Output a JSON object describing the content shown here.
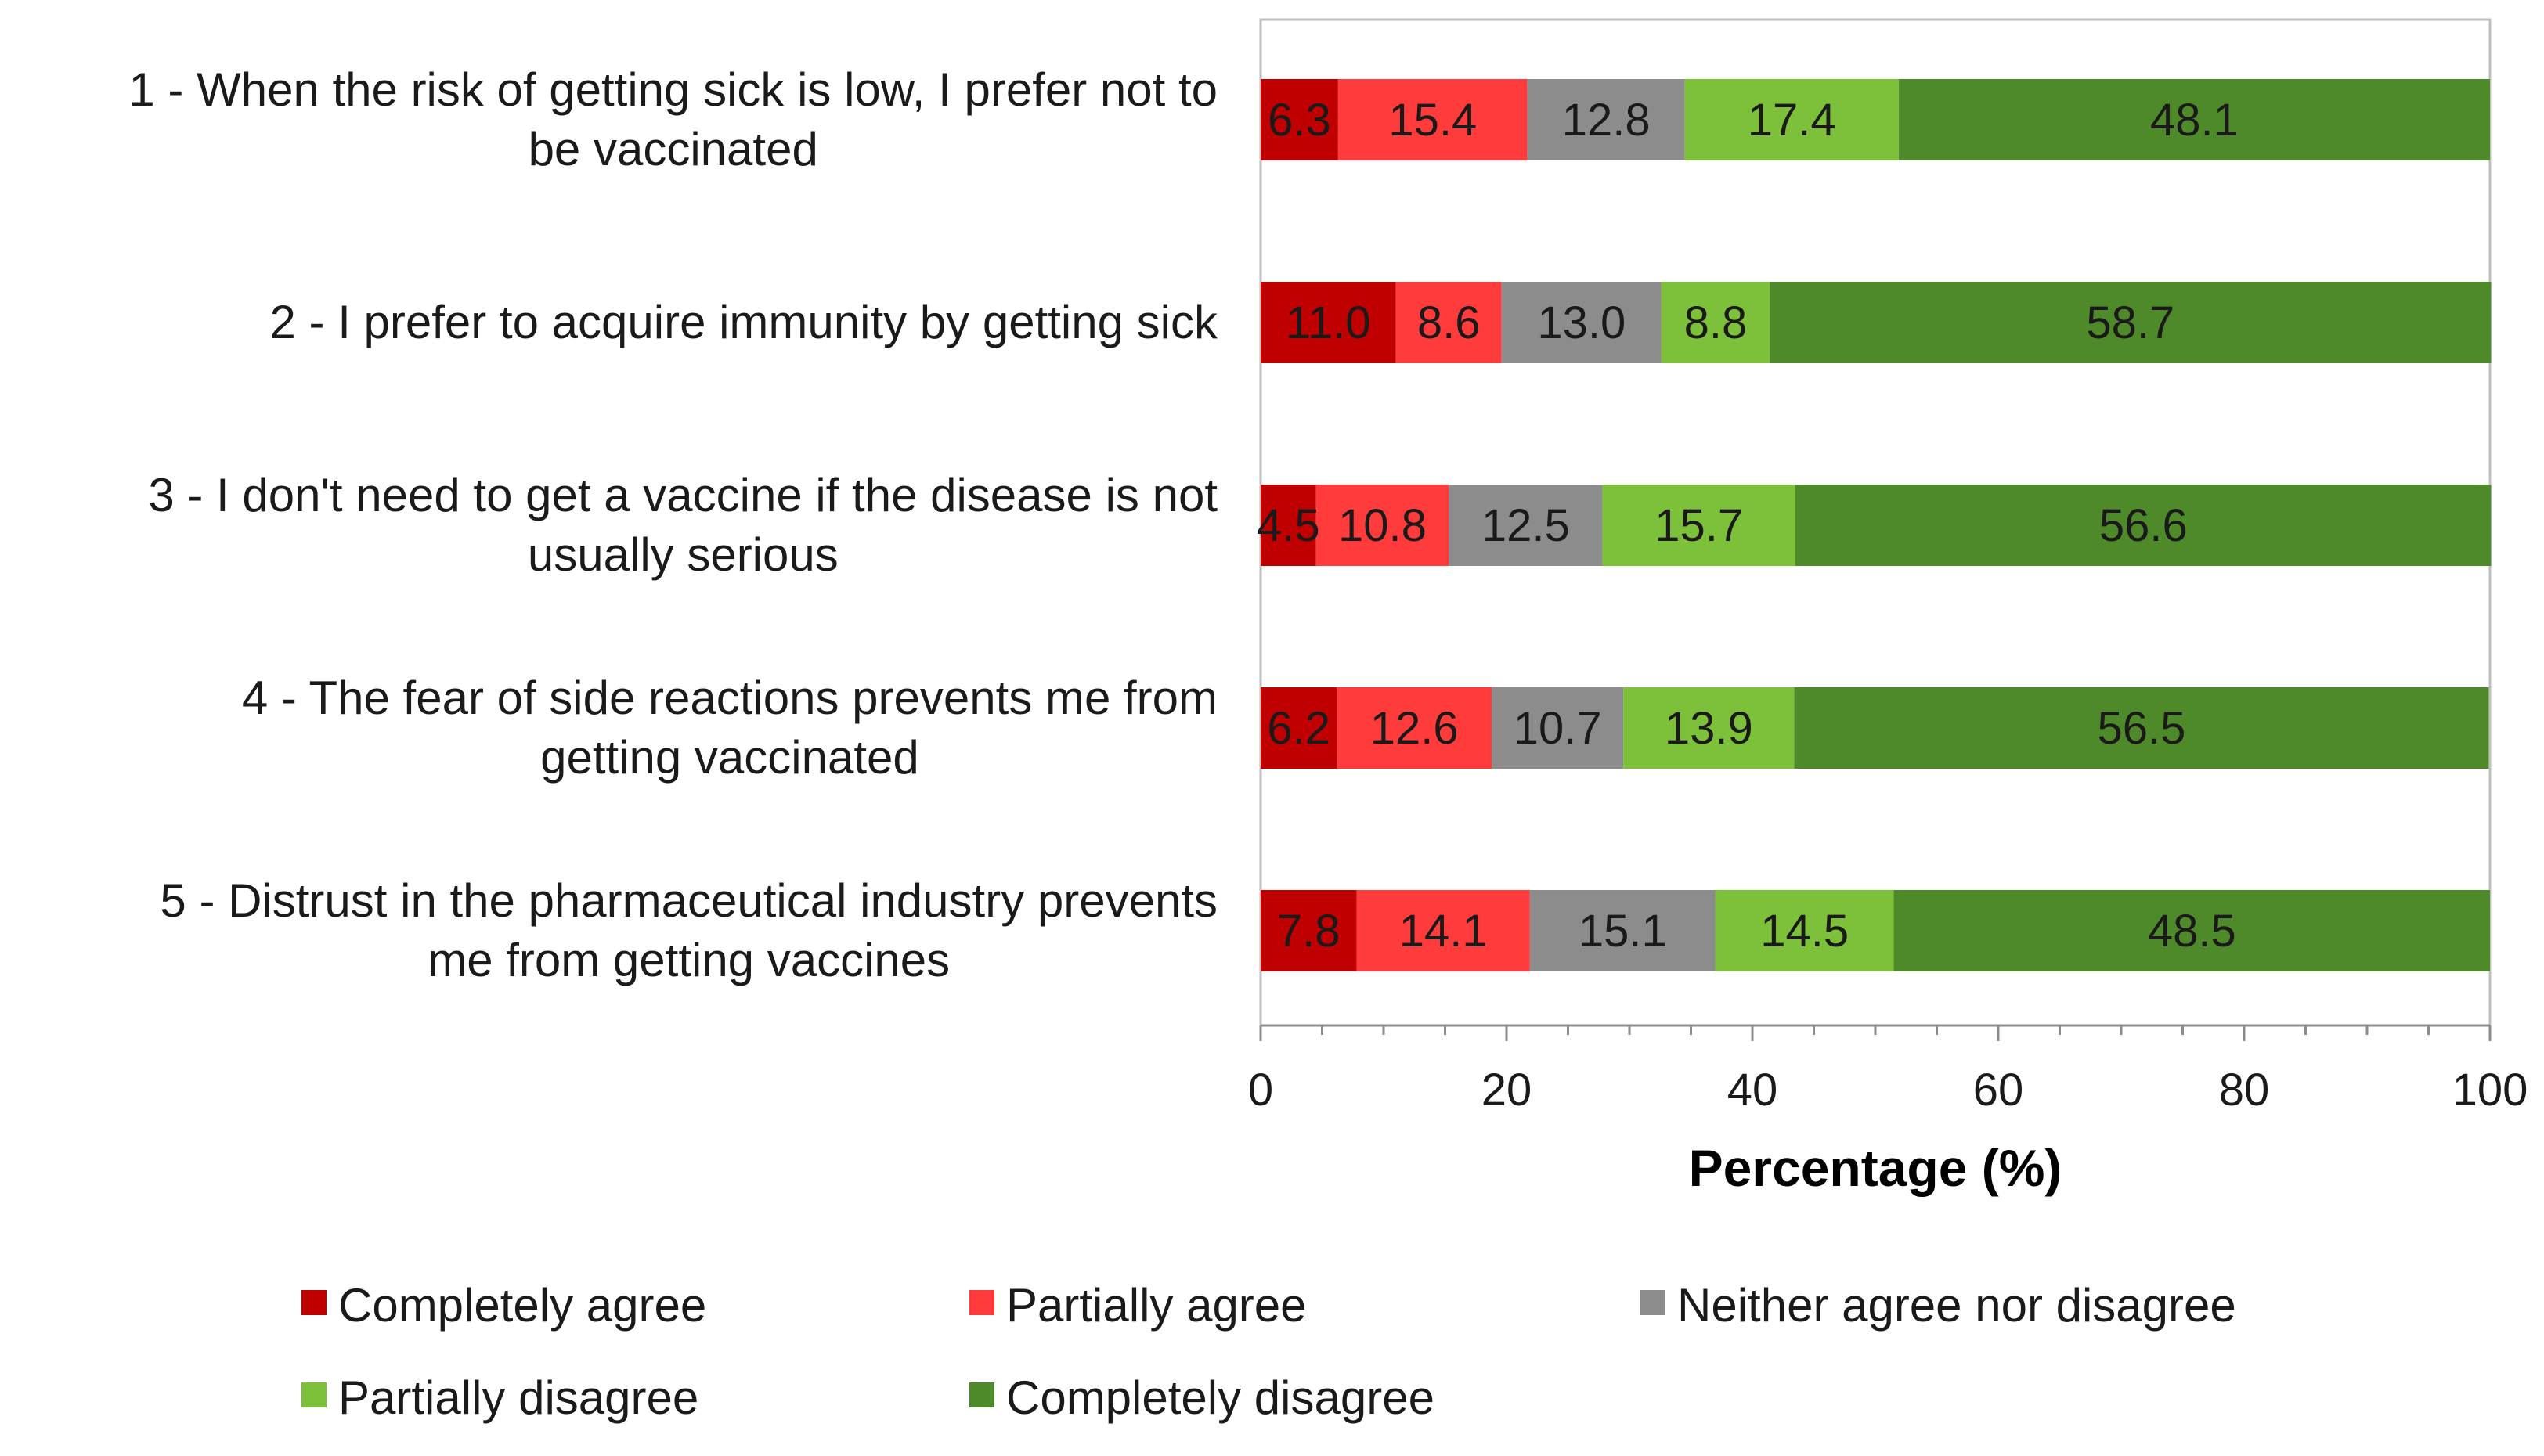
{
  "chart_data": {
    "type": "bar",
    "orientation": "horizontal",
    "stacked": true,
    "categories": [
      [
        "1 - When the risk of getting sick is low, I prefer not to",
        "be vaccinated"
      ],
      [
        "2 - I prefer to acquire immunity by getting sick"
      ],
      [
        "3 - I don't need to get a vaccine if the disease is not",
        "usually serious"
      ],
      [
        "4 - The fear of side reactions prevents me from",
        "getting vaccinated"
      ],
      [
        "5 - Distrust in the pharmaceutical industry prevents",
        "me from getting vaccines"
      ]
    ],
    "series": [
      {
        "name": "Completely agree",
        "color": "#c00000",
        "values": [
          6.3,
          11.0,
          4.5,
          6.2,
          7.8
        ],
        "labels": [
          "6.3",
          "11.0",
          "4.5",
          "6.2",
          "7.8"
        ]
      },
      {
        "name": "Partially agree",
        "color": "#ff3b3b",
        "values": [
          15.4,
          8.6,
          10.8,
          12.6,
          14.1
        ],
        "labels": [
          "15.4",
          "8.6",
          "10.8",
          "12.6",
          "14.1"
        ]
      },
      {
        "name": "Neither agree nor disagree",
        "color": "#8c8c8c",
        "values": [
          12.8,
          13.0,
          12.5,
          10.7,
          15.1
        ],
        "labels": [
          "12.8",
          "13.0",
          "12.5",
          "10.7",
          "15.1"
        ]
      },
      {
        "name": "Partially disagree",
        "color": "#7dc03a",
        "values": [
          17.4,
          8.8,
          15.7,
          13.9,
          14.5
        ],
        "labels": [
          "17.4",
          "8.8",
          "15.7",
          "13.9",
          "14.5"
        ]
      },
      {
        "name": "Completely disagree",
        "color": "#4f8a2a",
        "values": [
          48.1,
          58.7,
          56.6,
          56.5,
          48.5
        ],
        "labels": [
          "48.1",
          "58.7",
          "56.6",
          "56.5",
          "48.5"
        ]
      }
    ],
    "xlabel": "Percentage (%)",
    "ylabel": "",
    "xlim": [
      0,
      100
    ],
    "xticks": [
      "0",
      "20",
      "40",
      "60",
      "80",
      "100"
    ],
    "grid": false,
    "legend_position": "bottom"
  }
}
